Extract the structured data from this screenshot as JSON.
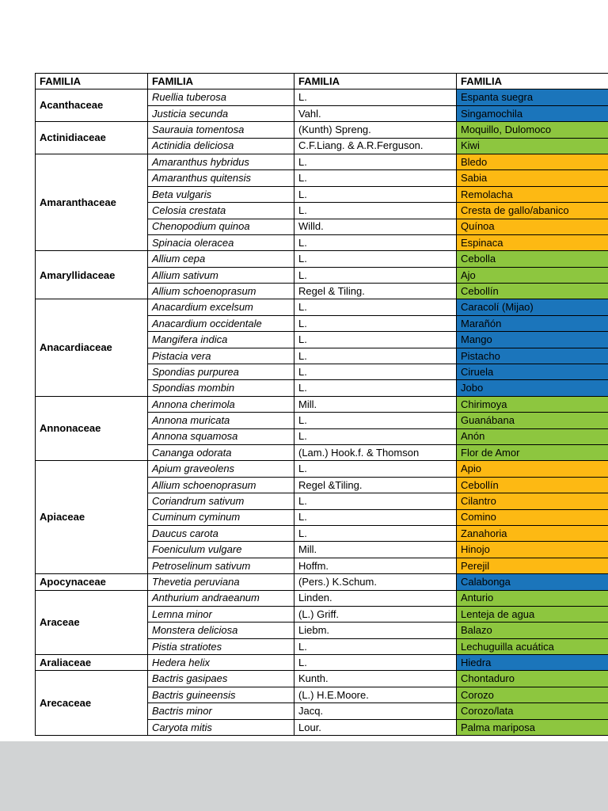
{
  "viewer": {
    "page_bg": "#ffffff",
    "gutter_bg": "#d1d3d4"
  },
  "table": {
    "headers": [
      "FAMILIA",
      "FAMILIA",
      "FAMILIA",
      "FAMILIA"
    ],
    "colors": {
      "blue": "#1b75bb",
      "green": "#8dc63f",
      "yellow": "#fdb913"
    },
    "groups": [
      {
        "family": "Acanthaceae",
        "rows": [
          {
            "species": "Ruellia tuberosa",
            "author": "L.",
            "common": "Espanta suegra",
            "color": "blue"
          },
          {
            "species": "Justicia secunda",
            "author": "Vahl.",
            "common": "Singamochila",
            "color": "blue"
          }
        ]
      },
      {
        "family": "Actinidiaceae",
        "rows": [
          {
            "species": "Saurauia tomentosa",
            "author": "(Kunth) Spreng.",
            "common": "Moquillo, Dulomoco",
            "color": "green"
          },
          {
            "species": "Actinidia deliciosa",
            "author": "C.F.Liang. & A.R.Ferguson.",
            "common": "Kiwi",
            "color": "green"
          }
        ]
      },
      {
        "family": "Amaranthaceae",
        "rows": [
          {
            "species": "Amaranthus hybridus",
            "author": "L.",
            "common": "Bledo",
            "color": "yellow"
          },
          {
            "species": "Amaranthus quitensis",
            "author": "L.",
            "common": "Sabia",
            "color": "yellow"
          },
          {
            "species": "Beta vulgaris",
            "author": "L.",
            "common": "Remolacha",
            "color": "yellow"
          },
          {
            "species": "Celosia crestata",
            "author": "L.",
            "common": "Cresta de gallo/abanico",
            "color": "yellow"
          },
          {
            "species": "Chenopodium quinoa",
            "author": "Willd.",
            "common": "Quínoa",
            "color": "yellow"
          },
          {
            "species": "Spinacia oleracea",
            "author": "L.",
            "common": "Espinaca",
            "color": "yellow"
          }
        ]
      },
      {
        "family": "Amaryllidaceae",
        "rows": [
          {
            "species": "Allium cepa",
            "author": "L.",
            "common": "Cebolla",
            "color": "green"
          },
          {
            "species": "Allium sativum",
            "author": "L.",
            "common": "Ajo",
            "color": "green"
          },
          {
            "species": "Allium schoenoprasum",
            "author": "Regel & Tiling.",
            "common": "Cebollín",
            "color": "green"
          }
        ]
      },
      {
        "family": "Anacardiaceae",
        "rows": [
          {
            "species": "Anacardium excelsum",
            "author": "L.",
            "common": "Caracolí (Mijao)",
            "color": "blue"
          },
          {
            "species": "Anacardium occidentale",
            "author": "L.",
            "common": "Marañón",
            "color": "blue"
          },
          {
            "species": "Mangifera indica",
            "author": "L.",
            "common": "Mango",
            "color": "blue"
          },
          {
            "species": "Pistacia vera",
            "author": "L.",
            "common": "Pistacho",
            "color": "blue"
          },
          {
            "species": "Spondias purpurea",
            "author": "L.",
            "common": "Ciruela",
            "color": "blue"
          },
          {
            "species": "Spondias mombin",
            "author": "L.",
            "common": "Jobo",
            "color": "blue"
          }
        ]
      },
      {
        "family": "Annonaceae",
        "rows": [
          {
            "species": "Annona cherimola",
            "author": "Mill.",
            "common": "Chirimoya",
            "color": "green"
          },
          {
            "species": "Annona muricata",
            "author": "L.",
            "common": "Guanábana",
            "color": "green"
          },
          {
            "species": "Annona squamosa",
            "author": "L.",
            "common": "Anón",
            "color": "green"
          },
          {
            "species": "Cananga odorata",
            "author": "(Lam.) Hook.f. & Thomson",
            "common": "Flor de Amor",
            "color": "green"
          }
        ]
      },
      {
        "family": "Apiaceae",
        "rows": [
          {
            "species": "Apium graveolens",
            "author": "L.",
            "common": "Apio",
            "color": "yellow"
          },
          {
            "species": "Allium schoenoprasum",
            "author": "Regel &Tiling.",
            "common": "Cebollín",
            "color": "yellow"
          },
          {
            "species": "Coriandrum sativum",
            "author": "L.",
            "common": "Cilantro",
            "color": "yellow"
          },
          {
            "species": "Cuminum cyminum",
            "author": "L.",
            "common": "Comino",
            "color": "yellow"
          },
          {
            "species": "Daucus carota",
            "author": "L.",
            "common": "Zanahoria",
            "color": "yellow"
          },
          {
            "species": "Foeniculum vulgare",
            "author": "Mill.",
            "common": "Hinojo",
            "color": "yellow"
          },
          {
            "species": "Petroselinum sativum",
            "author": "Hoffm.",
            "common": "Perejil",
            "color": "yellow"
          }
        ]
      },
      {
        "family": "Apocynaceae",
        "rows": [
          {
            "species": "Thevetia peruviana",
            "author": "(Pers.) K.Schum.",
            "common": "Calabonga",
            "color": "blue"
          }
        ]
      },
      {
        "family": "Araceae",
        "rows": [
          {
            "species": "Anthurium andraeanum",
            "author": "Linden.",
            "common": "Anturio",
            "color": "green"
          },
          {
            "species": "Lemna minor",
            "author": "(L.) Griff.",
            "common": "Lenteja de agua",
            "color": "green"
          },
          {
            "species": "Monstera deliciosa",
            "author": "Liebm.",
            "common": "Balazo",
            "color": "green"
          },
          {
            "species": "Pistia stratiotes",
            "author": "L.",
            "common": "Lechuguilla acuática",
            "color": "green"
          }
        ]
      },
      {
        "family": "Araliaceae",
        "rows": [
          {
            "species": "Hedera helix",
            "author": "L.",
            "common": "Hiedra",
            "color": "blue"
          }
        ]
      },
      {
        "family": "Arecaceae",
        "rows": [
          {
            "species": "Bactris gasipaes",
            "author": "Kunth.",
            "common": "Chontaduro",
            "color": "green"
          },
          {
            "species": "Bactris guineensis",
            "author": "(L.) H.E.Moore.",
            "common": "Corozo",
            "color": "green"
          },
          {
            "species": "Bactris minor",
            "author": "Jacq.",
            "common": "Corozo/lata",
            "color": "green"
          },
          {
            "species": "Caryota mitis",
            "author": "Lour.",
            "common": "Palma mariposa",
            "color": "green"
          }
        ]
      }
    ]
  }
}
